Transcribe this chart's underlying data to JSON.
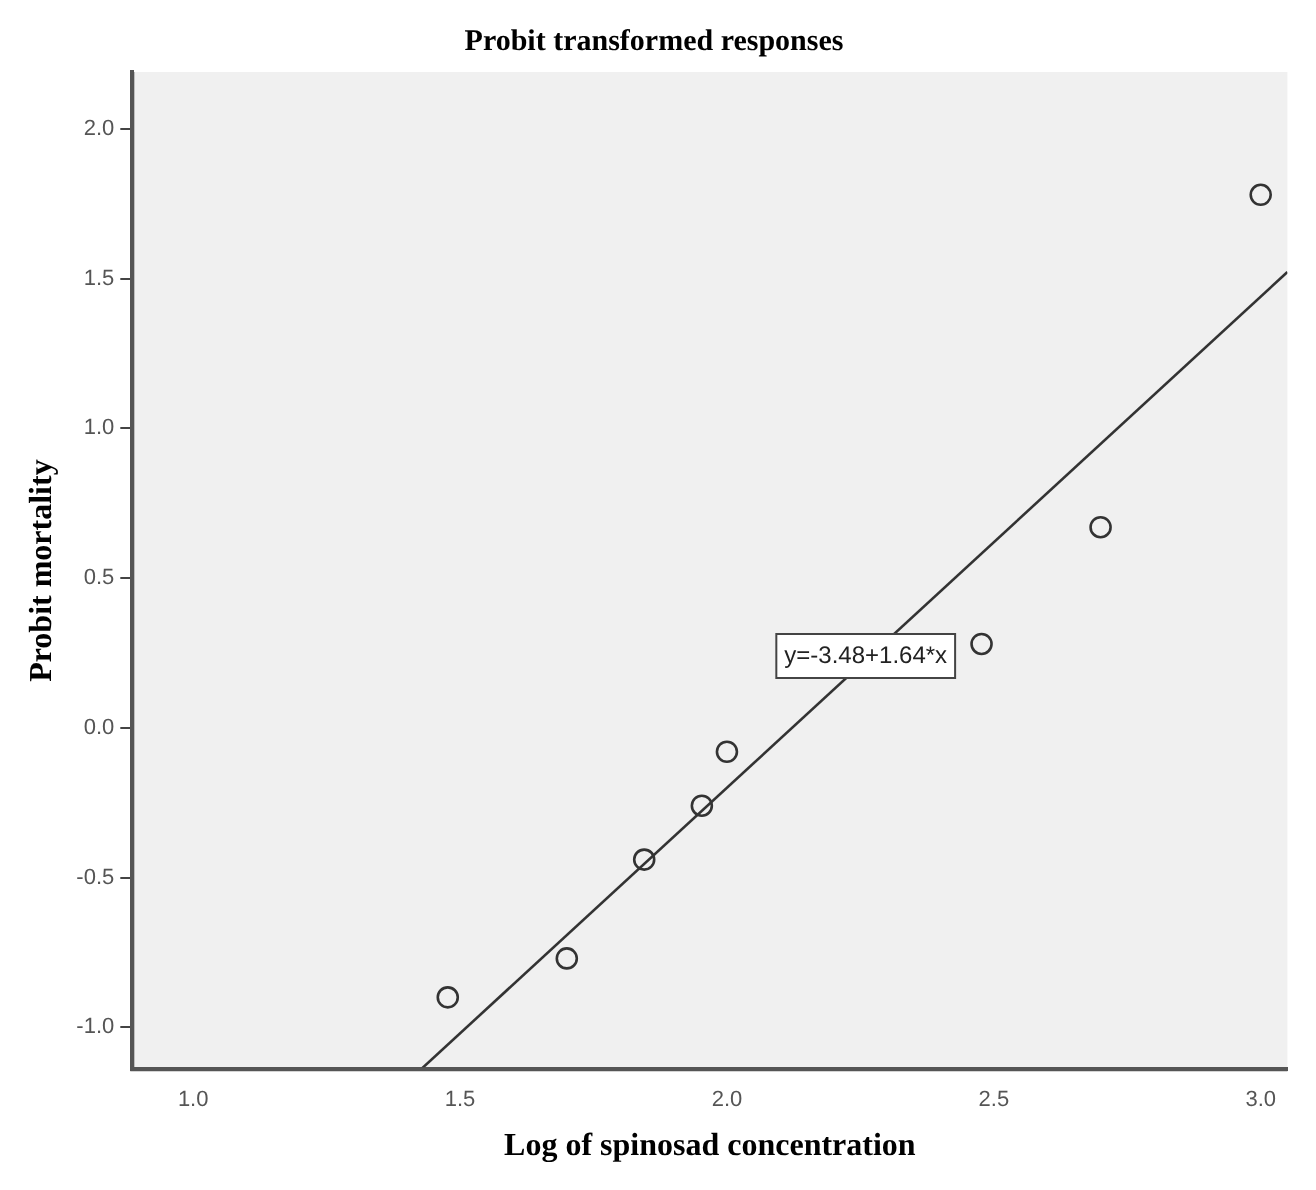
{
  "chart_data": {
    "type": "scatter",
    "title": "Probit transformed responses",
    "xlabel": "Log of spinosad concentration",
    "ylabel": "Probit mortality",
    "x": [
      1.477,
      1.7,
      1.845,
      1.953,
      2.0,
      2.477,
      2.7,
      3.0
    ],
    "series": [
      {
        "type": "scatter",
        "color": "#333333",
        "marker": "circle",
        "values": [
          -0.9,
          -0.77,
          -0.44,
          -0.26,
          -0.08,
          0.28,
          0.67,
          1.78
        ]
      },
      {
        "type": "line",
        "color": "#333333",
        "marker": "none",
        "x": [
          1.427,
          3.05
        ],
        "values": [
          -1.14,
          1.522
        ]
      }
    ],
    "xlim": [
      0.886,
      3.05
    ],
    "ylim": [
      -1.14,
      2.19
    ],
    "xticks": [
      {
        "value": 1.0,
        "label": "1.0"
      },
      {
        "value": 1.5,
        "label": "1.5"
      },
      {
        "value": 2.0,
        "label": "2.0"
      },
      {
        "value": 2.5,
        "label": "2.5"
      },
      {
        "value": 3.0,
        "label": "3.0"
      }
    ],
    "yticks": [
      {
        "value": -1.0,
        "label": "-1.0"
      },
      {
        "value": -0.5,
        "label": "-0.5"
      },
      {
        "value": 0.0,
        "label": "0.0"
      },
      {
        "value": 0.5,
        "label": "0.5"
      },
      {
        "value": 1.0,
        "label": "1.0"
      },
      {
        "value": 1.5,
        "label": "1.5"
      },
      {
        "value": 2.0,
        "label": "2.0"
      }
    ],
    "grid": false,
    "legend": false,
    "annotations": [
      {
        "text": "y=-3.48+1.64*x",
        "x": 2.26,
        "y": 0.24
      }
    ]
  }
}
